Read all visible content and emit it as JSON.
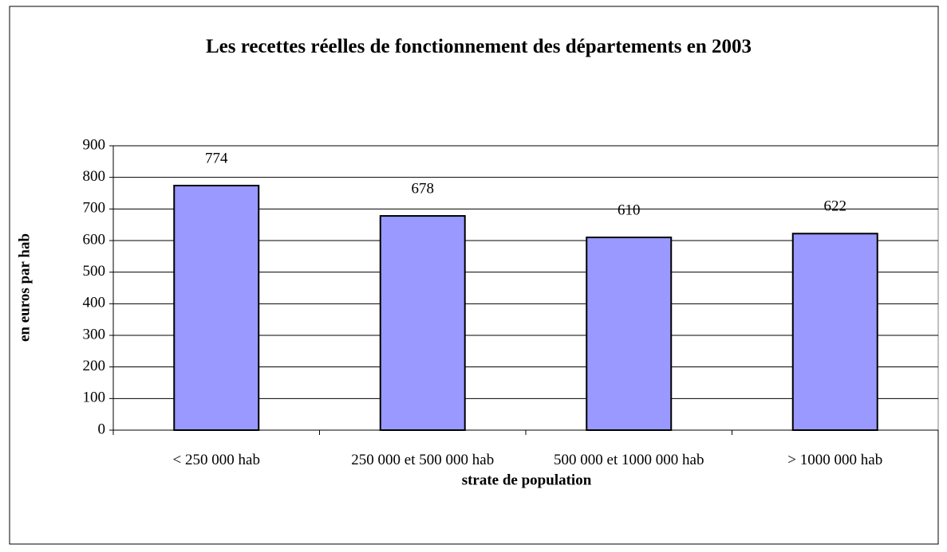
{
  "chart_data": {
    "type": "bar",
    "title": "Les recettes réelles de fonctionnement des départements en 2003",
    "x_label": "strate de population",
    "y_label": "en euros par hab",
    "categories": [
      "< 250 000 hab",
      "250 000 et 500 000 hab",
      "500 000 et 1000 000 hab",
      "> 1000 000 hab"
    ],
    "values": [
      774,
      678,
      610,
      622
    ],
    "color": "#9999ff",
    "ylim": [
      0,
      900
    ],
    "yticks": [
      0,
      100,
      200,
      300,
      400,
      500,
      600,
      700,
      800,
      900
    ],
    "grid": true
  }
}
